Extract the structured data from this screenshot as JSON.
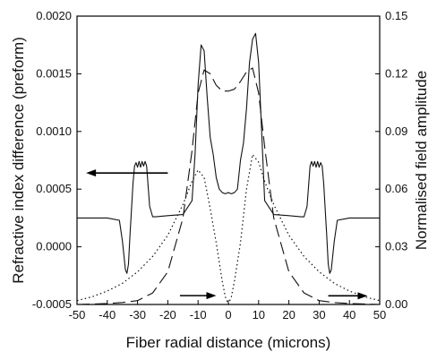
{
  "chart_data": {
    "type": "line",
    "xlabel": "Fiber radial distance (microns)",
    "ylabel_left": "Refractive index difference (preform)",
    "ylabel_right": "Normalised field amplitude",
    "xlim": [
      -50,
      50
    ],
    "ylim_left": [
      -0.0005,
      0.002
    ],
    "ylim_right": [
      0.0,
      0.15
    ],
    "x_ticks": [
      "-50",
      "-40",
      "-30",
      "-20",
      "-10",
      "0",
      "10",
      "20",
      "30",
      "40",
      "50"
    ],
    "y_left_ticks": [
      "-0.0005",
      "0.0000",
      "0.0005",
      "0.0010",
      "0.0015",
      "0.0020"
    ],
    "y_right_ticks": [
      "0.00",
      "0.03",
      "0.06",
      "0.09",
      "0.12",
      "0.15"
    ],
    "grid": false,
    "series": [
      {
        "style": "solid",
        "axis": "left",
        "x": [
          -50,
          -40,
          -36,
          -35,
          -34,
          -33.5,
          -33,
          -32.5,
          -31.5,
          -31,
          -30.5,
          -30,
          -29.5,
          -29,
          -28.5,
          -28,
          -27.5,
          -27,
          -26,
          -25,
          -24,
          -20,
          -15,
          -12,
          -11,
          -10,
          -9,
          -8,
          -7,
          -6,
          -5,
          -4,
          -3,
          -2,
          -1,
          0,
          1,
          2,
          3,
          4,
          5,
          6,
          7,
          8,
          9,
          10,
          11,
          12,
          15,
          20,
          24,
          25,
          26,
          27,
          27.5,
          28,
          28.5,
          29,
          29.5,
          30,
          30.5,
          31,
          31.5,
          32.5,
          33,
          33.5,
          34,
          35,
          36,
          40,
          50
        ],
        "y": [
          0.00025,
          0.00025,
          0.00023,
          5e-05,
          -0.0002,
          -0.00023,
          -0.00015,
          0.0001,
          0.00055,
          0.0007,
          0.00073,
          0.00069,
          0.00074,
          0.00069,
          0.00074,
          0.0007,
          0.00074,
          0.0007,
          0.00035,
          0.00026,
          0.00026,
          0.00027,
          0.00028,
          0.0004,
          0.0008,
          0.0014,
          0.00175,
          0.0017,
          0.0013,
          0.00095,
          0.0008,
          0.0006,
          0.0005,
          0.00047,
          0.00046,
          0.00047,
          0.00046,
          0.00047,
          0.0005,
          0.00075,
          0.0009,
          0.0012,
          0.0016,
          0.0018,
          0.00185,
          0.0016,
          0.001,
          0.0004,
          0.00028,
          0.00027,
          0.00026,
          0.00026,
          0.00035,
          0.0007,
          0.00074,
          0.0007,
          0.00074,
          0.00069,
          0.00074,
          0.00069,
          0.00073,
          0.0007,
          0.00055,
          0.0001,
          -0.00015,
          -0.00023,
          -0.0002,
          5e-05,
          0.00023,
          0.00025,
          0.00025
        ]
      },
      {
        "style": "dashed",
        "axis": "right",
        "x": [
          -50,
          -40,
          -35,
          -30,
          -25,
          -20,
          -15,
          -12,
          -10,
          -8,
          -6,
          -4,
          -2,
          0,
          2,
          4,
          6,
          8,
          10,
          12,
          15,
          20,
          25,
          30,
          35,
          40,
          50
        ],
        "y": [
          0.0,
          0.0005,
          0.001,
          0.002,
          0.006,
          0.017,
          0.045,
          0.08,
          0.11,
          0.122,
          0.12,
          0.114,
          0.111,
          0.111,
          0.112,
          0.116,
          0.121,
          0.123,
          0.11,
          0.082,
          0.045,
          0.017,
          0.006,
          0.002,
          0.001,
          0.0005,
          0.0
        ]
      },
      {
        "style": "dotted",
        "axis": "right",
        "x": [
          -50,
          -45,
          -40,
          -35,
          -30,
          -25,
          -20,
          -15,
          -12,
          -10,
          -8,
          -6,
          -4,
          -3,
          -2,
          -1,
          0,
          1,
          2,
          3,
          4,
          6,
          8,
          10,
          12,
          15,
          20,
          25,
          30,
          35,
          40,
          45,
          50
        ],
        "y": [
          0.002,
          0.004,
          0.007,
          0.011,
          0.017,
          0.025,
          0.036,
          0.052,
          0.064,
          0.07,
          0.066,
          0.05,
          0.032,
          0.022,
          0.012,
          0.004,
          0.0,
          0.004,
          0.012,
          0.022,
          0.032,
          0.06,
          0.078,
          0.074,
          0.064,
          0.052,
          0.036,
          0.025,
          0.017,
          0.011,
          0.007,
          0.004,
          0.002
        ]
      }
    ],
    "annotations": [
      {
        "type": "arrow",
        "direction": "left",
        "points_to": "left axis",
        "from": [
          -20,
          0.00064
        ],
        "to": [
          -47,
          0.00064
        ]
      },
      {
        "type": "arrow",
        "direction": "right",
        "points_to": "right axis",
        "from": [
          -16,
          0.0046
        ],
        "to": [
          -4,
          0.0046
        ]
      },
      {
        "type": "arrow",
        "direction": "right",
        "points_to": "right axis",
        "from": [
          33,
          0.0045
        ],
        "to": [
          46,
          0.0045
        ]
      }
    ]
  }
}
